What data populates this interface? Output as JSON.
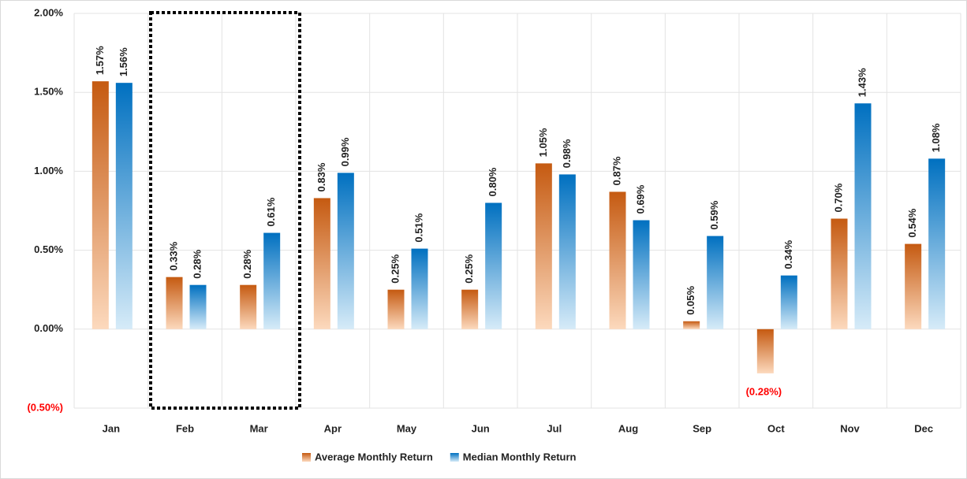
{
  "chart_data": {
    "type": "bar",
    "categories": [
      "Jan",
      "Feb",
      "Mar",
      "Apr",
      "May",
      "Jun",
      "Jul",
      "Aug",
      "Sep",
      "Oct",
      "Nov",
      "Dec"
    ],
    "series": [
      {
        "name": "Average Monthly Return",
        "color": "#c55a11",
        "values": [
          1.57,
          0.33,
          0.28,
          0.83,
          0.25,
          0.25,
          1.05,
          0.87,
          0.05,
          -0.28,
          0.7,
          0.54
        ],
        "value_labels": [
          "1.57%",
          "0.33%",
          "0.28%",
          "0.83%",
          "0.25%",
          "0.25%",
          "1.05%",
          "0.87%",
          "0.05%",
          "(0.28%)",
          "0.70%",
          "0.54%"
        ]
      },
      {
        "name": "Median Monthly Return",
        "color": "#0070c0",
        "values": [
          1.56,
          0.28,
          0.61,
          0.99,
          0.51,
          0.8,
          0.98,
          0.69,
          0.59,
          0.34,
          1.43,
          1.08
        ],
        "value_labels": [
          "1.56%",
          "0.28%",
          "0.61%",
          "0.99%",
          "0.51%",
          "0.80%",
          "0.98%",
          "0.69%",
          "0.59%",
          "0.34%",
          "1.43%",
          "1.08%"
        ]
      }
    ],
    "ylim": [
      -0.5,
      2
    ],
    "yticks": [
      {
        "value": -0.5,
        "label": "(0.50%)"
      },
      {
        "value": 0,
        "label": "0.00%"
      },
      {
        "value": 0.5,
        "label": "0.50%"
      },
      {
        "value": 1,
        "label": "1.00%"
      },
      {
        "value": 1.5,
        "label": "1.50%"
      },
      {
        "value": 2,
        "label": "2.00%"
      }
    ],
    "grid": true,
    "negative_color": "#ff0000",
    "legend": "bottom"
  }
}
